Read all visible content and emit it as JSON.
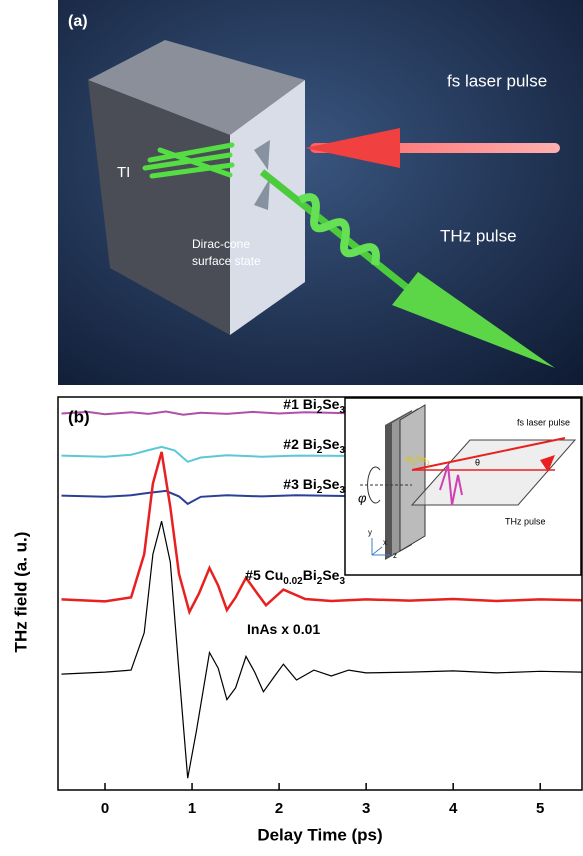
{
  "panel_a": {
    "label": "(a)",
    "laser": "fs laser pulse",
    "ti": "TI",
    "thz": "THz pulse",
    "dirac": [
      "Dirac-cone",
      "surface state"
    ]
  },
  "chart_data": {
    "type": "line",
    "label": "(b)",
    "x_label": "Delay Time (ps)",
    "y_label": "THz field (a. u.)",
    "xlim": [
      -0.54,
      5.48
    ],
    "ylim": [
      0,
      100
    ],
    "xticks": [
      0,
      1,
      2,
      3,
      4,
      5
    ],
    "series": [
      {
        "name_parts": [
          "#1 Bi",
          "2",
          "Se",
          "3"
        ],
        "color": "#b04fa8",
        "x": [
          -0.5,
          -0.2,
          0,
          0.3,
          0.5,
          0.7,
          0.9,
          1.1,
          1.4,
          1.7,
          2.0,
          2.3,
          2.75
        ],
        "values": [
          95.8,
          96.2,
          95.6,
          96.1,
          95.7,
          96.3,
          95.5,
          96.0,
          95.7,
          96.2,
          95.8,
          96.1,
          95.9
        ]
      },
      {
        "name_parts": [
          "#2 Bi",
          "2",
          "Se",
          "3"
        ],
        "color": "#5bc8d8",
        "x": [
          -0.5,
          0,
          0.3,
          0.5,
          0.65,
          0.8,
          0.95,
          1.1,
          1.4,
          1.8,
          2.2,
          2.75
        ],
        "values": [
          85.1,
          84.8,
          85.3,
          86.5,
          87.3,
          86.4,
          83.5,
          84.6,
          85.2,
          84.8,
          85.1,
          85.0
        ]
      },
      {
        "name_parts": [
          "#3 Bi",
          "2",
          "Se",
          "3"
        ],
        "color": "#2b3f97",
        "x": [
          -0.5,
          0,
          0.3,
          0.5,
          0.7,
          0.85,
          0.95,
          1.1,
          1.4,
          1.8,
          2.2,
          2.75
        ],
        "values": [
          74.9,
          74.6,
          75.0,
          75.6,
          76.1,
          74.7,
          72.8,
          74.6,
          75.0,
          74.7,
          75.0,
          74.8
        ]
      },
      {
        "name_parts": [
          "#5 Cu",
          "0.02",
          "Bi",
          "2",
          "Se",
          "3"
        ],
        "color": "#e8201f",
        "x": [
          -0.5,
          0,
          0.3,
          0.45,
          0.55,
          0.65,
          0.75,
          0.85,
          0.97,
          1.08,
          1.2,
          1.3,
          1.4,
          1.5,
          1.62,
          1.75,
          1.85,
          2.05,
          2.3,
          2.6,
          3,
          3.5,
          4,
          4.5,
          5,
          5.48
        ],
        "values": [
          48.5,
          48.0,
          49,
          60,
          78,
          86,
          72,
          55,
          45.3,
          50,
          56.5,
          52,
          45.8,
          49,
          54,
          50,
          47,
          51,
          48.6,
          48.1,
          48.5,
          48.2,
          48.6,
          48.1,
          48.5,
          48.3
        ]
      },
      {
        "name_parts": [
          "InAs x 0.01"
        ],
        "color": "#000000",
        "x": [
          -0.5,
          0,
          0.3,
          0.45,
          0.55,
          0.65,
          0.75,
          0.85,
          0.95,
          1.05,
          1.2,
          1.3,
          1.4,
          1.5,
          1.62,
          1.72,
          1.82,
          1.95,
          2.05,
          2.2,
          2.4,
          2.6,
          2.8,
          3.0,
          3.5,
          4,
          4.5,
          5,
          5.48
        ],
        "values": [
          29.5,
          30,
          30.5,
          40,
          60,
          68.4,
          58,
          30,
          3,
          15,
          35,
          31,
          23,
          26,
          34,
          30,
          25,
          29,
          32,
          28,
          30.5,
          29,
          30.5,
          29.8,
          30,
          30.3,
          29.8,
          30.2,
          30
        ]
      }
    ],
    "inset": {
      "laser": "fs laser pulse",
      "thz": "THz pulse",
      "phi": "φ",
      "theta": "θ",
      "sample_parts": [
        "Bi",
        "2",
        "Se",
        "3"
      ],
      "axes": [
        "y",
        "x",
        "z"
      ]
    }
  }
}
